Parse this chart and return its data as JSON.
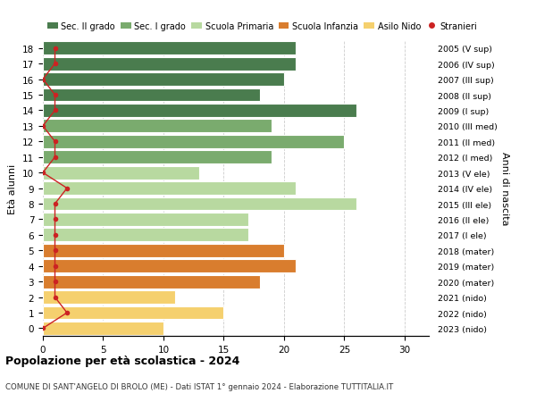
{
  "ages": [
    0,
    1,
    2,
    3,
    4,
    5,
    6,
    7,
    8,
    9,
    10,
    11,
    12,
    13,
    14,
    15,
    16,
    17,
    18
  ],
  "values": [
    10,
    15,
    11,
    18,
    21,
    20,
    17,
    17,
    26,
    21,
    13,
    19,
    25,
    19,
    26,
    18,
    20,
    21,
    21
  ],
  "stranieri": [
    0,
    2,
    1,
    1,
    1,
    1,
    1,
    1,
    1,
    2,
    0,
    1,
    1,
    0,
    1,
    1,
    0,
    1,
    1
  ],
  "bar_colors": [
    "#f5d06e",
    "#f5d06e",
    "#f5d06e",
    "#d97d2e",
    "#d97d2e",
    "#d97d2e",
    "#b8d9a0",
    "#b8d9a0",
    "#b8d9a0",
    "#b8d9a0",
    "#b8d9a0",
    "#7aab6e",
    "#7aab6e",
    "#7aab6e",
    "#4a7c4e",
    "#4a7c4e",
    "#4a7c4e",
    "#4a7c4e",
    "#4a7c4e"
  ],
  "right_labels": [
    "2023 (nido)",
    "2022 (nido)",
    "2021 (nido)",
    "2020 (mater)",
    "2019 (mater)",
    "2018 (mater)",
    "2017 (I ele)",
    "2016 (II ele)",
    "2015 (III ele)",
    "2014 (IV ele)",
    "2013 (V ele)",
    "2012 (I med)",
    "2011 (II med)",
    "2010 (III med)",
    "2009 (I sup)",
    "2008 (II sup)",
    "2007 (III sup)",
    "2006 (IV sup)",
    "2005 (V sup)"
  ],
  "legend_labels": [
    "Sec. II grado",
    "Sec. I grado",
    "Scuola Primaria",
    "Scuola Infanzia",
    "Asilo Nido",
    "Stranieri"
  ],
  "legend_colors": [
    "#4a7c4e",
    "#7aab6e",
    "#b8d9a0",
    "#d97d2e",
    "#f5d06e",
    "#cc2222"
  ],
  "ylabel_left": "Età alunni",
  "ylabel_right": "Anni di nascita",
  "title_bold": "Popolazione per età scolastica - 2024",
  "subtitle": "COMUNE DI SANT'ANGELO DI BROLO (ME) - Dati ISTAT 1° gennaio 2024 - Elaborazione TUTTITALIA.IT",
  "xlim": [
    0,
    32
  ],
  "xticks": [
    0,
    5,
    10,
    15,
    20,
    25,
    30
  ],
  "stranieri_color": "#cc2222",
  "bg_color": "#ffffff"
}
